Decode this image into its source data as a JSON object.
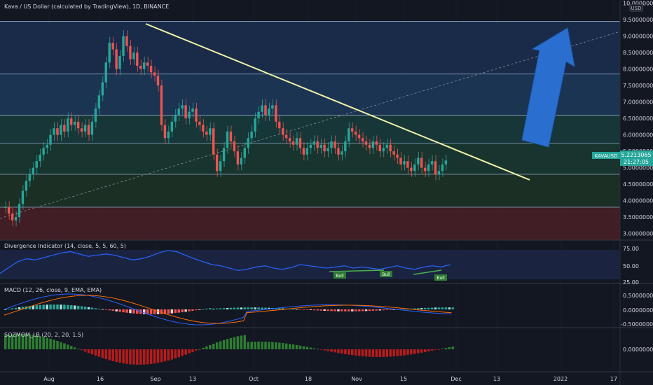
{
  "header": {
    "title": "Kava / US Dollar (calculated by TradingView), 1D, BINANCE"
  },
  "currency_badge": "USD",
  "price_label": {
    "symbol": "KAVAUSD",
    "price": "5.2213065",
    "countdown": "21:27:05"
  },
  "indicators": [
    {
      "name": "Divergence Indicator (14, close, 5, 5, 60, 5)",
      "ticks": [
        "75.00",
        "50.00",
        "25.00"
      ]
    },
    {
      "name": "MACD (12, 26, close, 9, EMA, EMA)",
      "ticks": [
        "0.5000000",
        "0.0000000",
        "-0.5000000"
      ]
    },
    {
      "name": "SQZMOM_LB (20, 2, 20, 1.5)",
      "ticks": [
        "0.0000000"
      ]
    }
  ],
  "bull_labels": [
    "Bull",
    "Bull",
    "Bull"
  ],
  "chart_data": {
    "type": "candlestick",
    "title": "Kava / US Dollar (calculated by TradingView), 1D, BINANCE",
    "y_ticks": [
      "10.0000000",
      "9.5000000",
      "9.0000000",
      "8.5000000",
      "8.0000000",
      "7.5000000",
      "7.0000000",
      "6.5000000",
      "6.0000000",
      "5.5000000",
      "5.0000000",
      "4.5000000",
      "4.0000000",
      "3.5000000",
      "3.0000000"
    ],
    "x_ticks": [
      "Aug",
      "16",
      "Sep",
      "13",
      "Oct",
      "18",
      "Nov",
      "15",
      "Dec",
      "13",
      "2022",
      "17"
    ],
    "last_price": 5.2213065,
    "horizontal_levels": [
      9.45,
      7.85,
      6.6,
      5.75,
      4.8,
      3.8
    ],
    "zones": [
      {
        "from": 7.85,
        "to": 9.45,
        "color": "#1b2f4f"
      },
      {
        "from": 6.6,
        "to": 7.85,
        "color": "#1c3a5a"
      },
      {
        "from": 5.75,
        "to": 6.6,
        "color": "#193c3c"
      },
      {
        "from": 4.8,
        "to": 5.75,
        "color": "#1a3a30"
      },
      {
        "from": 3.8,
        "to": 4.8,
        "color": "#1d3426"
      },
      {
        "from": 2.8,
        "to": 3.8,
        "color": "#4a1f26"
      }
    ],
    "resistance_line": {
      "start": [
        9.45
      ],
      "end": [
        4.45
      ],
      "color": "#f0f0a0"
    },
    "ylim": [
      2.8,
      10.1
    ]
  }
}
